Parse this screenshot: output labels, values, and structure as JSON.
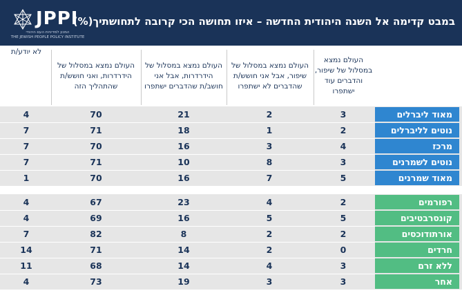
{
  "header": {
    "title": "במבט קדימה אל השנה היהודית החדשה – איזו תחושה הכי קרובה לתחושתיך(%)",
    "logo_text": "JPPI",
    "logo_sub_he": "המכון למדיניות העם היהודי",
    "logo_sub_en": "THE JEWISH PEOPLE POLICY INSTITUTE"
  },
  "colors": {
    "header_bg": "#1a3358",
    "political_label_bg": "#2f86d0",
    "religious_label_bg": "#52bd83",
    "row_bg": "#e6e6e6",
    "text": "#1a3358"
  },
  "chart_data": {
    "type": "table",
    "title": "במבט קדימה אל השנה היהודית החדשה – איזו תחושה הכי קרובה לתחושתיך(%)",
    "columns": [
      "העולם נמצא במסלול של שיפור, והדברים עוד ישתפרו",
      "העולם נמצא במסלול של שיפור, אבל אני חושש/ת שהדברים לא ישתפרו",
      "העולם נמצא במסלול של הידרדרות, אבל אני חושב/ת שהדברים ישתפרו",
      "העולם נמצא במסלול של הידרדרות, ואני חושש/ת שהתהליך הזה",
      "לא יודע/ת"
    ],
    "groups": [
      {
        "rows": [
          {
            "label": "מאוד ליברלים",
            "values": [
              3,
              2,
              21,
              70,
              4
            ]
          },
          {
            "label": "נוטים לליברלים",
            "values": [
              2,
              1,
              18,
              71,
              7
            ]
          },
          {
            "label": "מרכז",
            "values": [
              4,
              3,
              16,
              70,
              7
            ]
          },
          {
            "label": "נוטים לשמרנים",
            "values": [
              3,
              8,
              10,
              71,
              7
            ]
          },
          {
            "label": "מאוד שמרנים",
            "values": [
              5,
              7,
              16,
              70,
              1
            ]
          }
        ]
      },
      {
        "rows": [
          {
            "label": "רפורמים",
            "values": [
              2,
              4,
              23,
              67,
              4
            ]
          },
          {
            "label": "קונסרבטיבים",
            "values": [
              5,
              5,
              16,
              69,
              4
            ]
          },
          {
            "label": "אורתודוכסים",
            "values": [
              2,
              2,
              8,
              82,
              7
            ]
          },
          {
            "label": "חרדים",
            "values": [
              0,
              2,
              14,
              71,
              14
            ]
          },
          {
            "label": "ללא זרם",
            "values": [
              3,
              4,
              14,
              68,
              11
            ]
          },
          {
            "label": "אחר",
            "values": [
              3,
              3,
              19,
              73,
              4
            ]
          }
        ]
      }
    ]
  }
}
